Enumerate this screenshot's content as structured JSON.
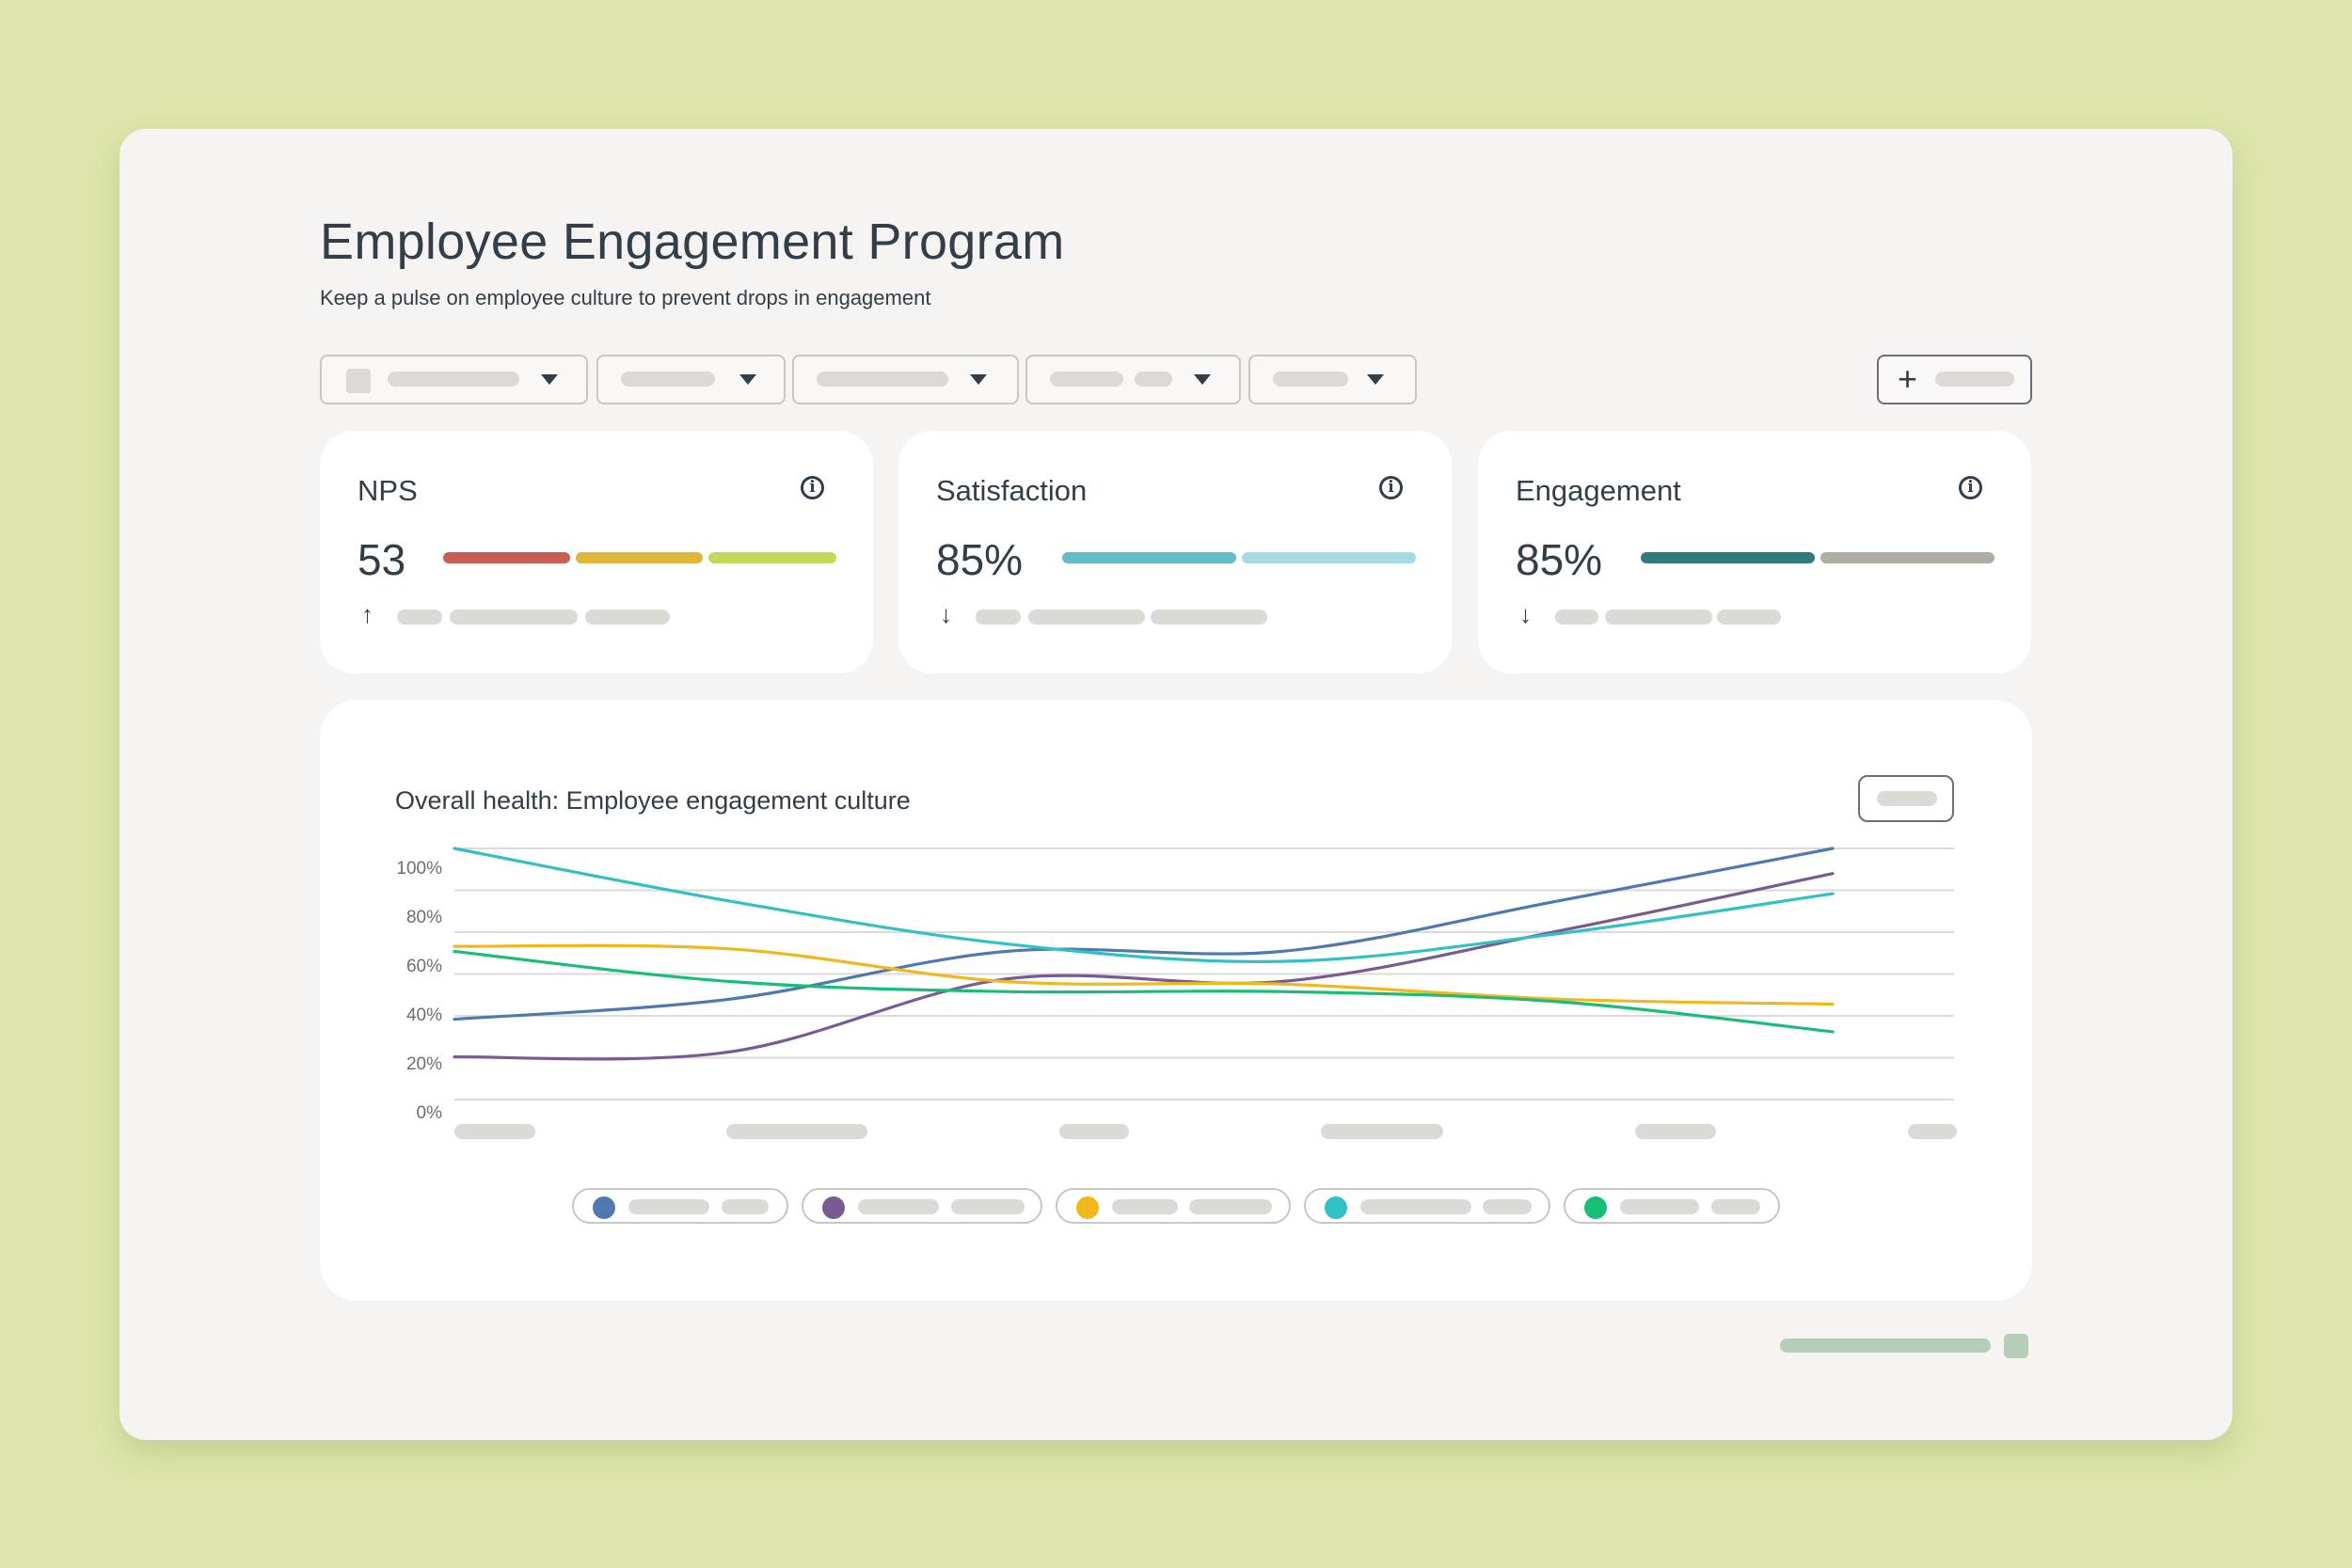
{
  "page": {
    "title": "Employee Engagement Program",
    "subtitle": "Keep a pulse on employee culture to prevent drops in engagement"
  },
  "filters": {
    "dropdowns": [
      {
        "icon": "chevron-down-icon"
      },
      {
        "icon": "chevron-down-icon"
      },
      {
        "icon": "chevron-down-icon"
      },
      {
        "icon": "chevron-down-icon"
      },
      {
        "icon": "chevron-down-icon"
      }
    ],
    "add_icon": "plus-icon"
  },
  "metrics": [
    {
      "title": "NPS",
      "value": "53",
      "trend": "up",
      "trend_glyph": "↑",
      "bar_colors": [
        "#c85f55",
        "#e0b63b",
        "#c2d95a"
      ]
    },
    {
      "title": "Satisfaction",
      "value": "85%",
      "trend": "down",
      "trend_glyph": "↓",
      "bar_colors": [
        "#64bcc6",
        "#a5dbe2"
      ]
    },
    {
      "title": "Engagement",
      "value": "85%",
      "trend": "down",
      "trend_glyph": "↓",
      "bar_colors": [
        "#2f7c80",
        "#b0ada6"
      ]
    }
  ],
  "chart_card": {
    "title": "Overall health: Employee engagement culture"
  },
  "chart_data": {
    "type": "line",
    "title": "Overall health: Employee engagement culture",
    "ylim": [
      0,
      100
    ],
    "y_ticks": [
      "100%",
      "80%",
      "60%",
      "40%",
      "20%",
      "0%"
    ],
    "grid": true,
    "x": [
      0,
      1,
      2,
      3,
      4,
      5
    ],
    "series": [
      {
        "color": "#4e79b0",
        "values": [
          32,
          40,
          59,
          59,
          79,
          100
        ]
      },
      {
        "color": "#7a5a92",
        "values": [
          17,
          19,
          48,
          47,
          67,
          90
        ]
      },
      {
        "color": "#f0b81c",
        "values": [
          61,
          60,
          47,
          46,
          40,
          38
        ]
      },
      {
        "color": "#2fc1c6",
        "values": [
          100,
          79,
          62,
          55,
          66,
          82
        ]
      },
      {
        "color": "#16be76",
        "values": [
          59,
          47,
          43,
          43,
          39,
          27
        ]
      }
    ]
  }
}
